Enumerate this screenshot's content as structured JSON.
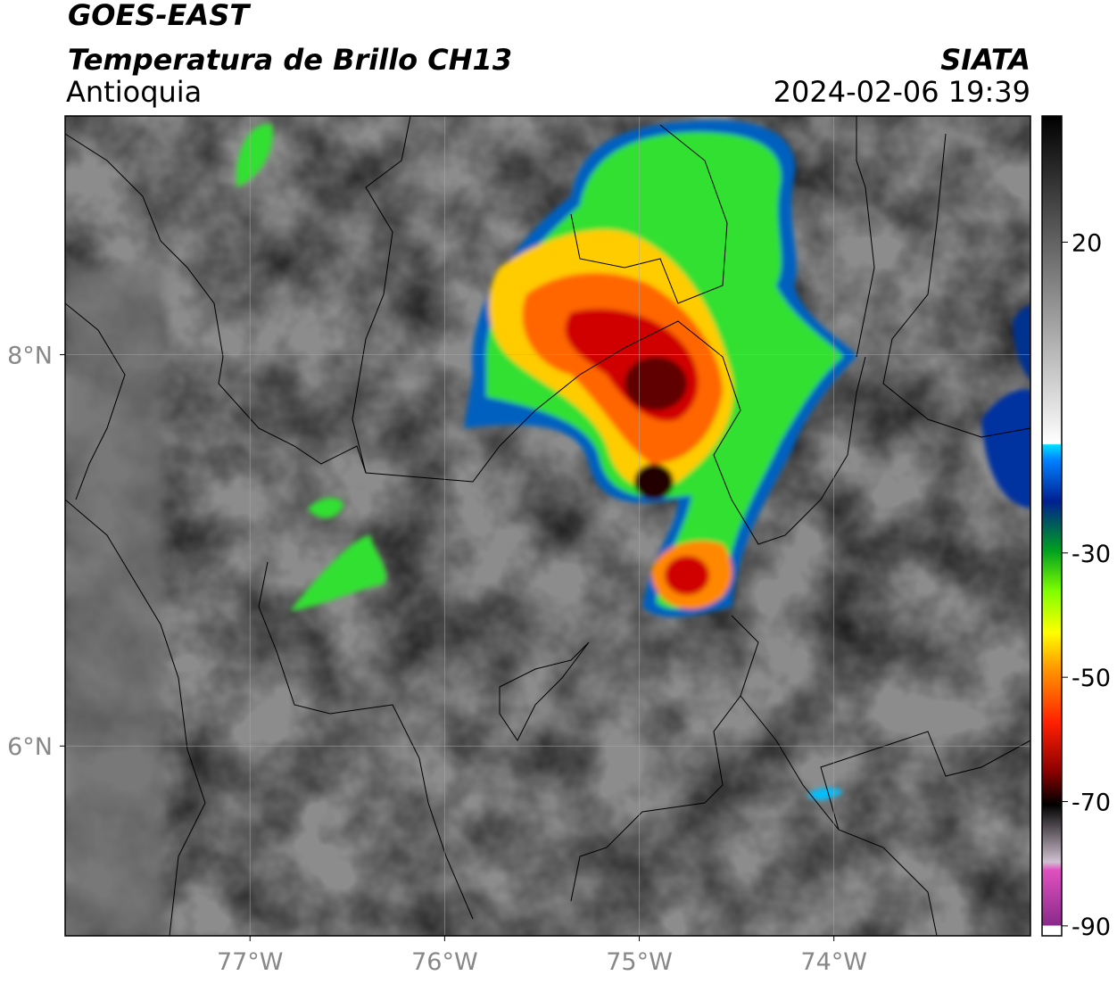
{
  "header": {
    "title": "GOES-EAST",
    "subtitle": "Temperatura de Brillo CH13",
    "region": "Antioquia",
    "source": "SIATA",
    "datetime": "2024-02-06 19:39"
  },
  "map": {
    "xlim": [
      -77.95,
      -72.99
    ],
    "ylim": [
      5.03,
      9.22
    ],
    "xticks": [
      {
        "value": -77,
        "label": "77°W"
      },
      {
        "value": -76,
        "label": "76°W"
      },
      {
        "value": -75,
        "label": "75°W"
      },
      {
        "value": -74,
        "label": "74°W"
      }
    ],
    "yticks": [
      {
        "value": 8,
        "label": "8°N"
      },
      {
        "value": 6,
        "label": "6°N"
      }
    ],
    "grid": true
  },
  "colorbar": {
    "lim": [
      -91.6,
      40.3
    ],
    "ticks": [
      20,
      -30,
      -50,
      -70,
      -90
    ]
  }
}
